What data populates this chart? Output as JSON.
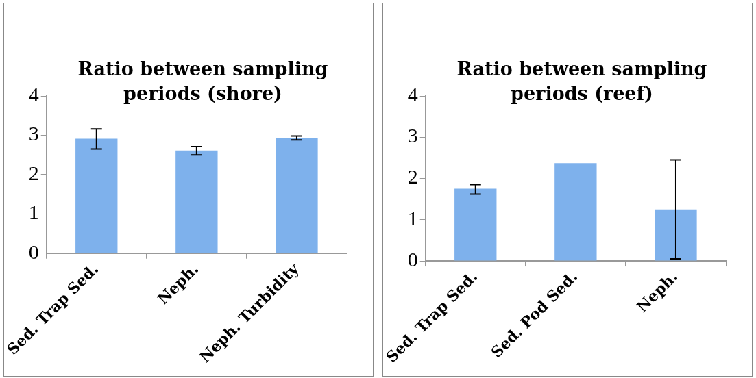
{
  "chart_data": [
    {
      "type": "bar",
      "title": "Ratio between sampling periods (shore)",
      "categories": [
        "Sed. Trap Sed.",
        "Neph.",
        "Neph. Turbidity"
      ],
      "values": [
        2.91,
        2.61,
        2.93
      ],
      "errors": [
        [
          2.65,
          3.16
        ],
        [
          2.5,
          2.71
        ],
        [
          2.88,
          2.98
        ]
      ],
      "color": "#7eb1ec",
      "ylim": [
        0,
        4
      ],
      "yticks": [
        0,
        1,
        2,
        3,
        4
      ],
      "grid": false,
      "legend": false
    },
    {
      "type": "bar",
      "title": "Ratio between sampling periods (reef)",
      "categories": [
        "Sed. Trap Sed.",
        "Sed. Pod Sed.",
        "Neph."
      ],
      "values": [
        1.75,
        2.37,
        1.25
      ],
      "errors": [
        [
          1.62,
          1.85
        ],
        null,
        [
          0.05,
          2.45
        ]
      ],
      "color": "#7eb1ec",
      "ylim": [
        0,
        4
      ],
      "yticks": [
        0,
        1,
        2,
        3,
        4
      ],
      "grid": false,
      "legend": false
    }
  ]
}
